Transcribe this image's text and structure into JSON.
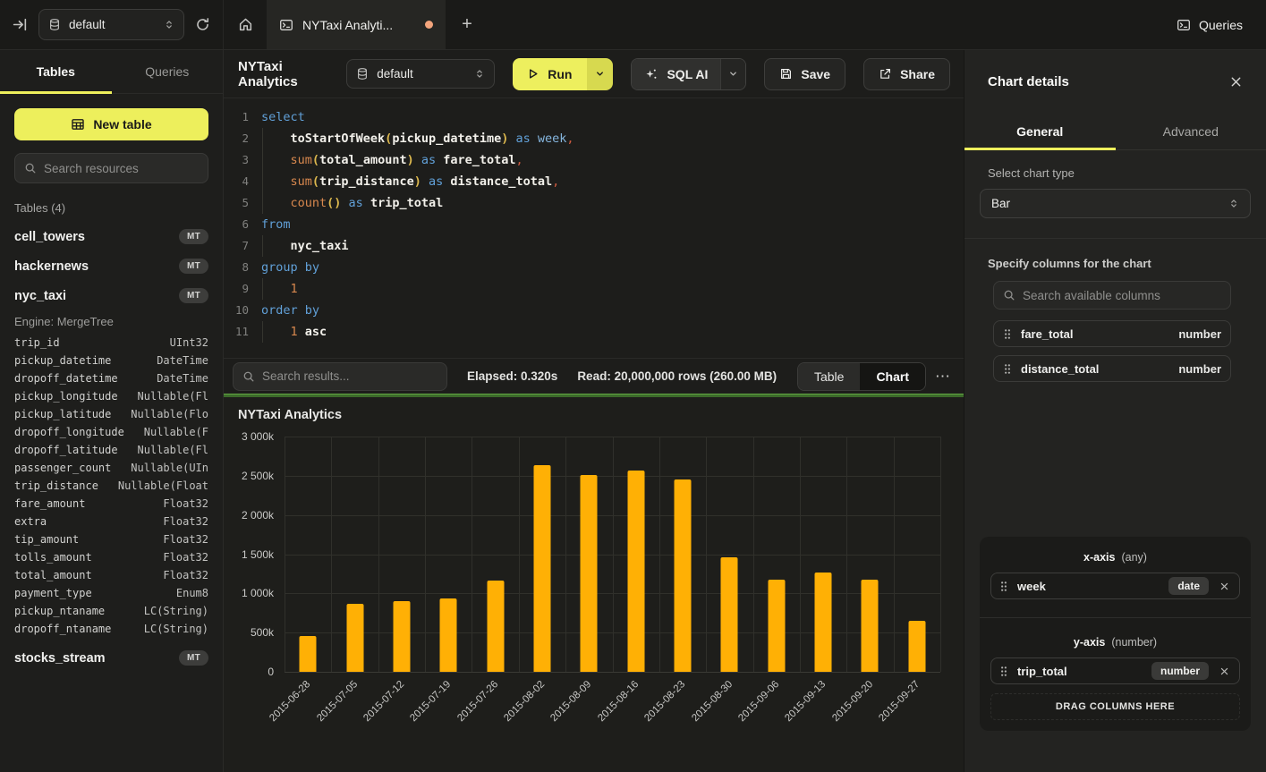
{
  "colors": {
    "accent_yellow": "#EDEF5C",
    "run_button": "#EDEF5E",
    "run_caret": "#D7D94F",
    "bar_orange": "#FFB005",
    "success_green": "#63A844",
    "tab_dot": "#F2A47C"
  },
  "icons": {
    "collapse-sidebar": "⇥",
    "database": "🗄",
    "refresh": "↻",
    "home": "⌂",
    "terminal": "⌨",
    "plus": "+",
    "play": "▷",
    "chevron-down": "⌄",
    "chevron-updown": "⇅",
    "sparkles": "✦",
    "save": "💾",
    "share": "↗",
    "search": "🔍",
    "close": "✕",
    "drag-handle": "⠿",
    "more": "⋯",
    "table-grid": "▦"
  },
  "topbar": {
    "db_selector": "default",
    "tab_title": "NYTaxi Analyti...",
    "plus": "+",
    "queries_label": "Queries"
  },
  "sidebar": {
    "tab_tables": "Tables",
    "tab_queries": "Queries",
    "new_table_label": "New table",
    "search_placeholder": "Search resources",
    "section_label": "Tables (4)",
    "tables": [
      {
        "name": "cell_towers",
        "badge": "MT"
      },
      {
        "name": "hackernews",
        "badge": "MT"
      },
      {
        "name": "nyc_taxi",
        "badge": "MT",
        "engine": "Engine: MergeTree"
      },
      {
        "name": "stocks_stream",
        "badge": "MT"
      }
    ],
    "nyc_taxi_columns": [
      [
        "trip_id",
        "UInt32"
      ],
      [
        "pickup_datetime",
        "DateTime"
      ],
      [
        "dropoff_datetime",
        "DateTime"
      ],
      [
        "pickup_longitude",
        "Nullable(Fl"
      ],
      [
        "pickup_latitude",
        "Nullable(Flo"
      ],
      [
        "dropoff_longitude",
        "Nullable(F"
      ],
      [
        "dropoff_latitude",
        "Nullable(Fl"
      ],
      [
        "passenger_count",
        "Nullable(UIn"
      ],
      [
        "trip_distance",
        "Nullable(Float"
      ],
      [
        "fare_amount",
        "Float32"
      ],
      [
        "extra",
        "Float32"
      ],
      [
        "tip_amount",
        "Float32"
      ],
      [
        "tolls_amount",
        "Float32"
      ],
      [
        "total_amount",
        "Float32"
      ],
      [
        "payment_type",
        "Enum8"
      ],
      [
        "pickup_ntaname",
        "LC(String)"
      ],
      [
        "dropoff_ntaname",
        "LC(String)"
      ]
    ]
  },
  "toolbar": {
    "title": "NYTaxi Analytics",
    "db_selector": "default",
    "run_label": "Run",
    "sqlai_label": "SQL AI",
    "save_label": "Save",
    "share_label": "Share"
  },
  "editor": {
    "lines": [
      {
        "n": "1",
        "ind": false,
        "t": [
          [
            "k",
            "select"
          ]
        ]
      },
      {
        "n": "2",
        "ind": true,
        "t": [
          [
            "id",
            "    toStartOfWeek"
          ],
          [
            "y",
            "("
          ],
          [
            "id",
            "pickup_datetime"
          ],
          [
            "y",
            ")"
          ],
          [
            "k",
            " as "
          ],
          [
            "k2",
            "week"
          ],
          [
            "o",
            ","
          ]
        ]
      },
      {
        "n": "3",
        "ind": true,
        "t": [
          [
            "fn",
            "    sum"
          ],
          [
            "y",
            "("
          ],
          [
            "id",
            "total_amount"
          ],
          [
            "y",
            ")"
          ],
          [
            "k",
            " as "
          ],
          [
            "id",
            "fare_total"
          ],
          [
            "o",
            ","
          ]
        ]
      },
      {
        "n": "4",
        "ind": true,
        "t": [
          [
            "fn",
            "    sum"
          ],
          [
            "y",
            "("
          ],
          [
            "id",
            "trip_distance"
          ],
          [
            "y",
            ")"
          ],
          [
            "k",
            " as "
          ],
          [
            "id",
            "distance_total"
          ],
          [
            "o",
            ","
          ]
        ]
      },
      {
        "n": "5",
        "ind": true,
        "t": [
          [
            "fn",
            "    count"
          ],
          [
            "y",
            "()"
          ],
          [
            "k",
            " as "
          ],
          [
            "id",
            "trip_total"
          ]
        ]
      },
      {
        "n": "6",
        "ind": false,
        "t": [
          [
            "k",
            "from"
          ]
        ]
      },
      {
        "n": "7",
        "ind": true,
        "t": [
          [
            "id",
            "    nyc_taxi"
          ]
        ]
      },
      {
        "n": "8",
        "ind": false,
        "t": [
          [
            "k",
            "group by"
          ]
        ]
      },
      {
        "n": "9",
        "ind": true,
        "t": [
          [
            "n",
            "    1"
          ]
        ]
      },
      {
        "n": "10",
        "ind": false,
        "t": [
          [
            "k",
            "order by"
          ]
        ]
      },
      {
        "n": "11",
        "ind": true,
        "t": [
          [
            "n",
            "    1"
          ],
          [
            "id",
            " asc"
          ]
        ]
      }
    ]
  },
  "results_bar": {
    "search_placeholder": "Search results...",
    "elapsed": "Elapsed: 0.320s",
    "read": "Read: 20,000,000 rows (260.00 MB)",
    "view_table": "Table",
    "view_chart": "Chart",
    "more": "⋯"
  },
  "chart_data": {
    "type": "bar",
    "title": "NYTaxi Analytics",
    "xlabel": "week",
    "ylabel": "trip_total",
    "legend_position": "none",
    "grid": true,
    "x_label_rotation": -45,
    "categories": [
      "2015-06-28",
      "2015-07-05",
      "2015-07-12",
      "2015-07-19",
      "2015-07-26",
      "2015-08-02",
      "2015-08-09",
      "2015-08-16",
      "2015-08-23",
      "2015-08-30",
      "2015-09-06",
      "2015-09-13",
      "2015-09-20",
      "2015-09-27"
    ],
    "series": [
      {
        "name": "trip_total",
        "values": [
          460000,
          870000,
          905000,
          930000,
          1160000,
          2630000,
          2510000,
          2570000,
          2450000,
          1460000,
          1170000,
          1270000,
          1170000,
          655000
        ]
      }
    ],
    "ylim": [
      0,
      3000000
    ],
    "y_ticks": {
      "labels": [
        "3 000k",
        "2 500k",
        "2 000k",
        "1 500k",
        "1 000k",
        "500k",
        "0"
      ],
      "values": [
        3000000,
        2500000,
        2000000,
        1500000,
        1000000,
        500000,
        0
      ]
    },
    "bar_color": "#FFB005"
  },
  "chart_panel": {
    "header": "Chart details",
    "tab_general": "General",
    "tab_advanced": "Advanced",
    "chart_type_label": "Select chart type",
    "chart_type_value": "Bar",
    "columns_label": "Specify columns for the chart",
    "columns_search_placeholder": "Search available columns",
    "available_columns": [
      {
        "name": "fare_total",
        "type": "number"
      },
      {
        "name": "distance_total",
        "type": "number"
      }
    ],
    "x_axis": {
      "label": "x-axis",
      "hint": "(any)",
      "item_name": "week",
      "item_badge": "date"
    },
    "y_axis": {
      "label": "y-axis",
      "hint": "(number)",
      "item_name": "trip_total",
      "item_badge": "number"
    },
    "drop_label": "DRAG COLUMNS HERE"
  }
}
